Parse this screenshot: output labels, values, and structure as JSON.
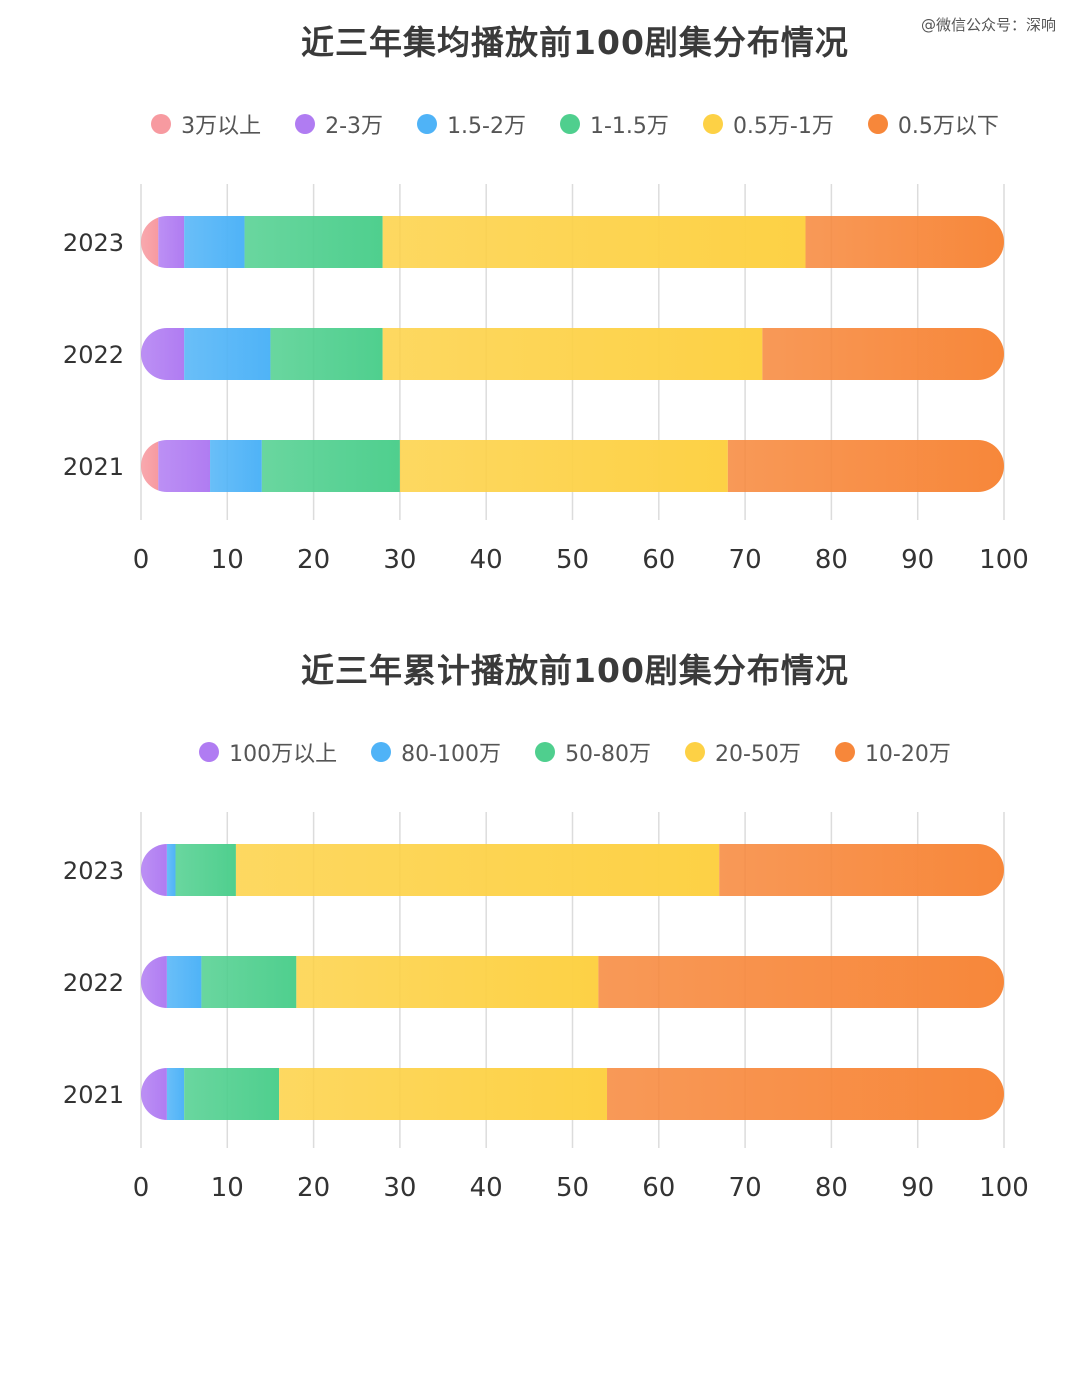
{
  "watermark": "@微信公众号：深响",
  "colors": {
    "pink": "#f79aa0",
    "purple": "#b07cf2",
    "blue": "#4fb3f7",
    "green": "#4fcf8e",
    "yellow": "#fdd145",
    "orange": "#f7873a"
  },
  "chart_data": [
    {
      "type": "bar",
      "orientation": "horizontal-stacked",
      "title": "近三年集均播放前100剧集分布情况",
      "categories": [
        "2023",
        "2022",
        "2021"
      ],
      "xlim": [
        0,
        100
      ],
      "xticks": [
        "0",
        "10",
        "20",
        "30",
        "40",
        "50",
        "60",
        "70",
        "80",
        "90",
        "100"
      ],
      "grid": true,
      "legend_position": "top",
      "series": [
        {
          "name": "3万以上",
          "color": "#f79aa0",
          "values": [
            2,
            0,
            2
          ]
        },
        {
          "name": "2-3万",
          "color": "#b07cf2",
          "values": [
            3,
            5,
            6
          ]
        },
        {
          "name": "1.5-2万",
          "color": "#4fb3f7",
          "values": [
            7,
            10,
            6
          ]
        },
        {
          "name": "1-1.5万",
          "color": "#4fcf8e",
          "values": [
            16,
            13,
            16
          ]
        },
        {
          "name": "0.5万-1万",
          "color": "#fdd145",
          "values": [
            49,
            44,
            38
          ]
        },
        {
          "name": "0.5万以下",
          "color": "#f7873a",
          "values": [
            23,
            28,
            32
          ]
        }
      ]
    },
    {
      "type": "bar",
      "orientation": "horizontal-stacked",
      "title": "近三年累计播放前100剧集分布情况",
      "categories": [
        "2023",
        "2022",
        "2021"
      ],
      "xlim": [
        0,
        100
      ],
      "xticks": [
        "0",
        "10",
        "20",
        "30",
        "40",
        "50",
        "60",
        "70",
        "80",
        "90",
        "100"
      ],
      "grid": true,
      "legend_position": "top",
      "series": [
        {
          "name": "100万以上",
          "color": "#b07cf2",
          "values": [
            3,
            3,
            3
          ]
        },
        {
          "name": "80-100万",
          "color": "#4fb3f7",
          "values": [
            1,
            4,
            2
          ]
        },
        {
          "name": "50-80万",
          "color": "#4fcf8e",
          "values": [
            7,
            11,
            11
          ]
        },
        {
          "name": "20-50万",
          "color": "#fdd145",
          "values": [
            56,
            35,
            38
          ]
        },
        {
          "name": "10-20万",
          "color": "#f7873a",
          "values": [
            33,
            47,
            46
          ]
        }
      ]
    }
  ]
}
